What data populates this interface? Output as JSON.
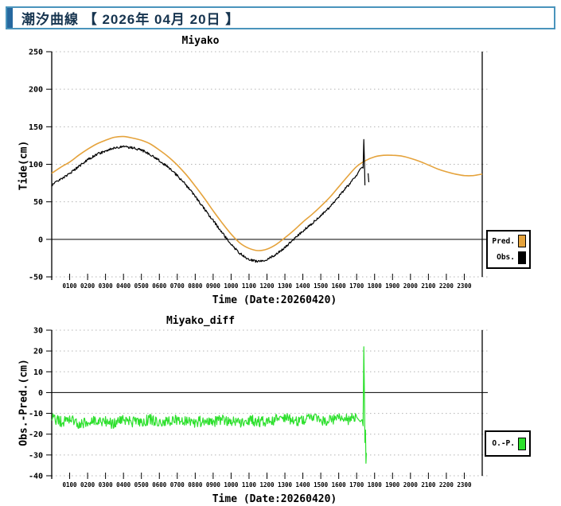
{
  "header": {
    "title": "潮汐曲線 【 2026年 04月 20日 】"
  },
  "colors": {
    "pred": "#e5a33c",
    "obs": "#000000",
    "diff": "#2de02d",
    "grid": "#b4b4b4",
    "axis": "#000000",
    "header_border": "#4a94bc",
    "header_accent": "#26689f",
    "header_text": "#16344f"
  },
  "noise_seed": 20260420,
  "chart_data": [
    {
      "type": "line",
      "title": "Miyako",
      "xlabel": "Time (Date:20260420)",
      "ylabel": "Tide(cm)",
      "ylim": [
        -50,
        250
      ],
      "y_ticks": [
        250,
        200,
        150,
        100,
        50,
        0,
        -50
      ],
      "x_hours": [
        0,
        24
      ],
      "x_tick_labels": [
        "0100",
        "0200",
        "0300",
        "0400",
        "0500",
        "0600",
        "0700",
        "0800",
        "0900",
        "1000",
        "1100",
        "1200",
        "1300",
        "1400",
        "1500",
        "1600",
        "1700",
        "1800",
        "1900",
        "2000",
        "2100",
        "2200",
        "2300"
      ],
      "grid": "dotted",
      "legend_position": "right-outside",
      "legend": [
        {
          "label": "Pred.",
          "color": "#e5a33c"
        },
        {
          "label": "Obs.",
          "color": "#000000"
        }
      ],
      "series": [
        {
          "name": "Pred.",
          "color": "#e5a33c",
          "t_start": 0,
          "t_step": 0.5,
          "values": [
            88,
            96,
            103,
            112,
            120,
            127,
            132,
            136,
            137,
            135,
            132,
            127,
            119,
            110,
            99,
            86,
            71,
            55,
            38,
            22,
            7,
            -5,
            -12,
            -15,
            -13,
            -7,
            2,
            12,
            23,
            33,
            44,
            56,
            70,
            84,
            97,
            105,
            110,
            112,
            112,
            111,
            108,
            104,
            99,
            94,
            90,
            87,
            85,
            85,
            87
          ]
        },
        {
          "name": "Obs.",
          "color": "#000000",
          "t_start": 0,
          "t_step": 0.5,
          "noise_amp": 1.6,
          "values": [
            72,
            80,
            88,
            97,
            106,
            113,
            118,
            122,
            123,
            122,
            119,
            113,
            105,
            96,
            85,
            72,
            57,
            41,
            25,
            9,
            -7,
            -19,
            -27,
            -30,
            -27,
            -20,
            -11,
            0,
            11,
            21,
            31,
            43,
            57,
            71,
            85
          ],
          "tail": [
            [
              17.1,
              90
            ],
            [
              17.2,
              94
            ],
            [
              17.3,
              96
            ],
            [
              17.36,
              95
            ],
            [
              17.4,
              133
            ],
            [
              17.44,
              100
            ],
            [
              17.46,
              72
            ]
          ],
          "tail2": [
            [
              17.64,
              88
            ],
            [
              17.68,
              76
            ]
          ]
        }
      ]
    },
    {
      "type": "line",
      "title": "Miyako_diff",
      "xlabel": "Time (Date:20260420)",
      "ylabel": "Obs.-Pred.(cm)",
      "ylim": [
        -40,
        30
      ],
      "y_ticks": [
        30,
        20,
        10,
        0,
        -10,
        -20,
        -30,
        -40
      ],
      "x_hours": [
        0,
        24
      ],
      "x_tick_labels": [
        "0100",
        "0200",
        "0300",
        "0400",
        "0500",
        "0600",
        "0700",
        "0800",
        "0900",
        "1000",
        "1100",
        "1200",
        "1300",
        "1400",
        "1500",
        "1600",
        "1700",
        "1800",
        "1900",
        "2000",
        "2100",
        "2200",
        "2300"
      ],
      "grid": "dotted",
      "legend_position": "right-outside",
      "legend": [
        {
          "label": "O.-P.",
          "color": "#2de02d"
        }
      ],
      "series": [
        {
          "name": "O.-P.",
          "color": "#2de02d",
          "t_start": 0,
          "t_step": 0.5,
          "noise_amp": 2.6,
          "values": [
            -12,
            -14,
            -13,
            -15,
            -14,
            -13,
            -14,
            -15,
            -13,
            -14,
            -14,
            -13,
            -15,
            -14,
            -13,
            -14,
            -15,
            -13,
            -14,
            -13,
            -14,
            -15,
            -13,
            -14,
            -14,
            -13,
            -12,
            -14,
            -13,
            -12,
            -14,
            -13,
            -12,
            -13,
            -12
          ],
          "tail": [
            [
              17.1,
              -13
            ],
            [
              17.2,
              -14
            ],
            [
              17.3,
              -13
            ],
            [
              17.36,
              -16
            ],
            [
              17.4,
              22
            ],
            [
              17.44,
              -5
            ],
            [
              17.46,
              -24
            ],
            [
              17.49,
              -18
            ],
            [
              17.52,
              -34
            ],
            [
              17.54,
              -29
            ]
          ]
        }
      ]
    }
  ]
}
